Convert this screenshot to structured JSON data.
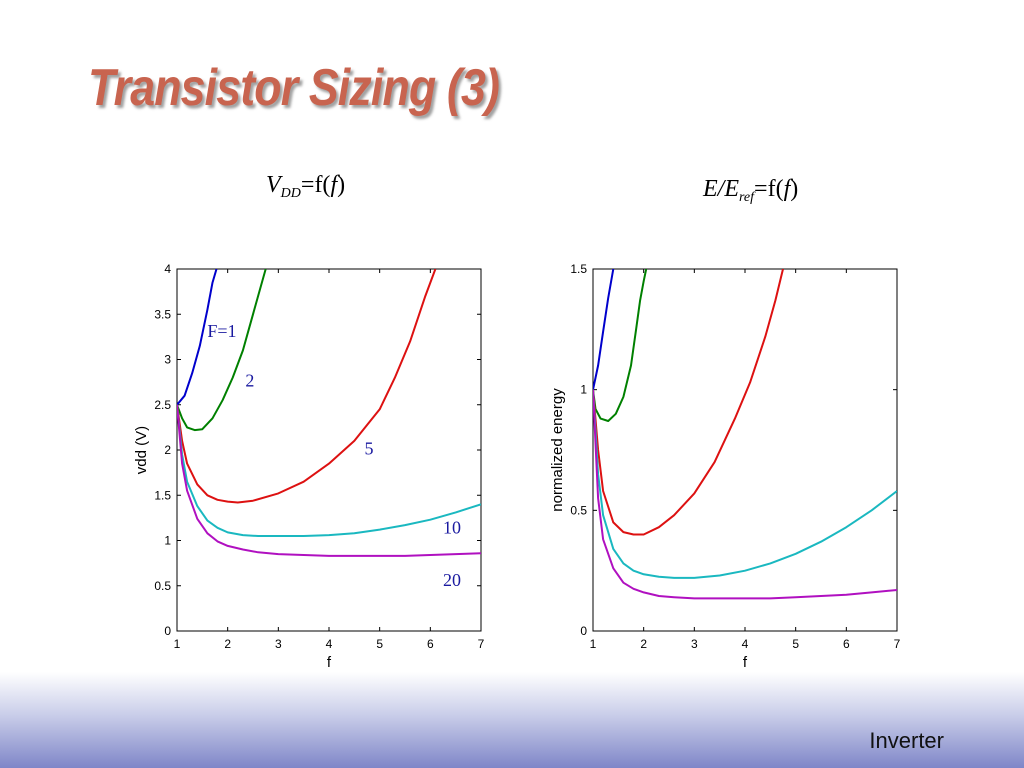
{
  "slide": {
    "title": "Transistor Sizing (3)",
    "footer": "Inverter"
  },
  "captions": {
    "left": {
      "main": "V",
      "sub": "DD",
      "rest": "=f(",
      "var": "f",
      "close": ")"
    },
    "right": {
      "main": "E/E",
      "sub": "ref",
      "rest": "=f(",
      "var": "f",
      "close": ")"
    }
  },
  "colors": {
    "blue": "#0000cc",
    "green": "#008000",
    "red": "#dd1111",
    "cyan": "#1ab8c0",
    "magenta": "#b010c0"
  },
  "chart_data": [
    {
      "type": "line",
      "xlabel": "f",
      "ylabel": "vdd (V)",
      "xlim": [
        1,
        7
      ],
      "ylim": [
        0,
        4
      ],
      "xticks": [
        "1",
        "2",
        "3",
        "4",
        "5",
        "6",
        "7"
      ],
      "yticks": [
        "0",
        "0.5",
        "1",
        "1.5",
        "2",
        "2.5",
        "3",
        "3.5",
        "4"
      ],
      "grid": false,
      "annotations": [
        {
          "text": "F=1",
          "x": 1.6,
          "y": 3.25
        },
        {
          "text": "2",
          "x": 2.35,
          "y": 2.7
        },
        {
          "text": "5",
          "x": 4.7,
          "y": 1.95
        },
        {
          "text": "10",
          "x": 6.25,
          "y": 1.08
        },
        {
          "text": "20",
          "x": 6.25,
          "y": 0.5
        }
      ],
      "series": [
        {
          "color": "blue",
          "x": [
            1,
            1.15,
            1.3,
            1.45,
            1.6,
            1.7,
            1.78
          ],
          "y": [
            2.5,
            2.6,
            2.85,
            3.15,
            3.55,
            3.85,
            4.0
          ]
        },
        {
          "color": "green",
          "x": [
            1,
            1.1,
            1.2,
            1.35,
            1.5,
            1.7,
            1.9,
            2.1,
            2.3,
            2.5,
            2.65,
            2.75
          ],
          "y": [
            2.5,
            2.35,
            2.25,
            2.22,
            2.23,
            2.35,
            2.55,
            2.8,
            3.1,
            3.5,
            3.8,
            4.0
          ]
        },
        {
          "color": "red",
          "x": [
            1,
            1.1,
            1.2,
            1.4,
            1.6,
            1.8,
            2.0,
            2.2,
            2.5,
            3.0,
            3.5,
            4.0,
            4.5,
            5.0,
            5.3,
            5.6,
            5.9,
            6.1
          ],
          "y": [
            2.5,
            2.1,
            1.85,
            1.62,
            1.5,
            1.45,
            1.43,
            1.42,
            1.44,
            1.52,
            1.65,
            1.85,
            2.1,
            2.45,
            2.8,
            3.2,
            3.7,
            4.0
          ]
        },
        {
          "color": "cyan",
          "x": [
            1,
            1.1,
            1.2,
            1.4,
            1.6,
            1.8,
            2.0,
            2.3,
            2.6,
            3.0,
            3.5,
            4.0,
            4.5,
            5.0,
            5.5,
            6.0,
            6.5,
            7.0
          ],
          "y": [
            2.5,
            1.95,
            1.65,
            1.38,
            1.22,
            1.14,
            1.09,
            1.06,
            1.05,
            1.05,
            1.05,
            1.06,
            1.08,
            1.12,
            1.17,
            1.23,
            1.31,
            1.4
          ]
        },
        {
          "color": "magenta",
          "x": [
            1,
            1.1,
            1.2,
            1.4,
            1.6,
            1.8,
            2.0,
            2.3,
            2.6,
            3.0,
            3.5,
            4.0,
            4.5,
            5.0,
            5.5,
            6.0,
            6.5,
            7.0
          ],
          "y": [
            2.5,
            1.85,
            1.55,
            1.24,
            1.08,
            0.99,
            0.94,
            0.9,
            0.87,
            0.85,
            0.84,
            0.83,
            0.83,
            0.83,
            0.83,
            0.84,
            0.85,
            0.86
          ]
        }
      ]
    },
    {
      "type": "line",
      "xlabel": "f",
      "ylabel": "normalized energy",
      "xlim": [
        1,
        7
      ],
      "ylim": [
        0,
        1.5
      ],
      "xticks": [
        "1",
        "2",
        "3",
        "4",
        "5",
        "6",
        "7"
      ],
      "yticks": [
        "0",
        "0.5",
        "1",
        "1.5"
      ],
      "grid": false,
      "series": [
        {
          "color": "blue",
          "x": [
            1,
            1.1,
            1.2,
            1.3,
            1.4
          ],
          "y": [
            1.0,
            1.1,
            1.24,
            1.38,
            1.5
          ]
        },
        {
          "color": "green",
          "x": [
            1,
            1.05,
            1.15,
            1.3,
            1.45,
            1.6,
            1.75,
            1.85,
            1.93,
            2.0,
            2.05
          ],
          "y": [
            1.0,
            0.92,
            0.88,
            0.87,
            0.9,
            0.97,
            1.1,
            1.25,
            1.37,
            1.45,
            1.5
          ]
        },
        {
          "color": "red",
          "x": [
            1,
            1.1,
            1.2,
            1.4,
            1.6,
            1.8,
            2.0,
            2.3,
            2.6,
            3.0,
            3.4,
            3.8,
            4.1,
            4.4,
            4.6,
            4.75
          ],
          "y": [
            1.0,
            0.75,
            0.58,
            0.45,
            0.41,
            0.4,
            0.4,
            0.43,
            0.48,
            0.57,
            0.7,
            0.88,
            1.03,
            1.22,
            1.37,
            1.5
          ]
        },
        {
          "color": "cyan",
          "x": [
            1,
            1.1,
            1.2,
            1.4,
            1.6,
            1.8,
            2.0,
            2.3,
            2.6,
            3.0,
            3.5,
            4.0,
            4.5,
            5.0,
            5.5,
            6.0,
            6.5,
            7.0
          ],
          "y": [
            1.0,
            0.65,
            0.48,
            0.34,
            0.28,
            0.25,
            0.235,
            0.225,
            0.22,
            0.22,
            0.23,
            0.25,
            0.28,
            0.32,
            0.37,
            0.43,
            0.5,
            0.58
          ]
        },
        {
          "color": "magenta",
          "x": [
            1,
            1.1,
            1.2,
            1.4,
            1.6,
            1.8,
            2.0,
            2.3,
            2.6,
            3.0,
            3.5,
            4.0,
            4.5,
            5.0,
            5.5,
            6.0,
            6.5,
            7.0
          ],
          "y": [
            1.0,
            0.55,
            0.38,
            0.26,
            0.2,
            0.175,
            0.16,
            0.145,
            0.14,
            0.135,
            0.135,
            0.135,
            0.135,
            0.14,
            0.145,
            0.15,
            0.16,
            0.17
          ]
        }
      ]
    }
  ]
}
